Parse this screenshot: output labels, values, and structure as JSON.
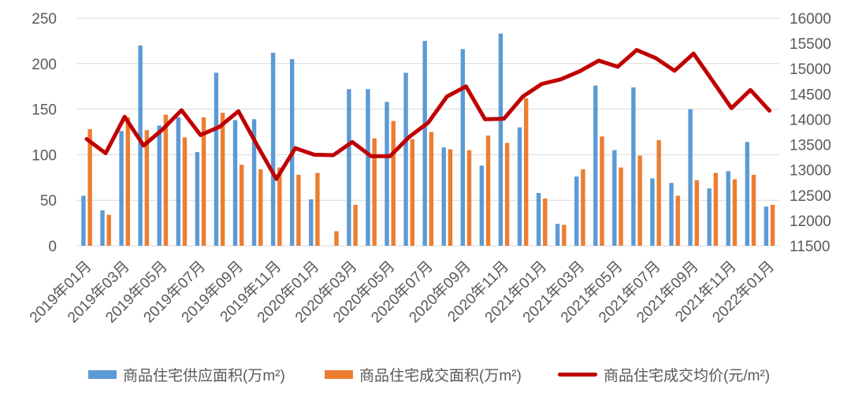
{
  "chart_data": {
    "type": "combo-bar-line",
    "categories": [
      "2019年01月",
      "2019年02月",
      "2019年03月",
      "2019年04月",
      "2019年05月",
      "2019年06月",
      "2019年07月",
      "2019年08月",
      "2019年09月",
      "2019年10月",
      "2019年11月",
      "2019年12月",
      "2020年01月",
      "2020年02月",
      "2020年03月",
      "2020年04月",
      "2020年05月",
      "2020年06月",
      "2020年07月",
      "2020年08月",
      "2020年09月",
      "2020年10月",
      "2020年11月",
      "2020年12月",
      "2021年01月",
      "2021年02月",
      "2021年03月",
      "2021年04月",
      "2021年05月",
      "2021年06月",
      "2021年07月",
      "2021年08月",
      "2021年09月",
      "2021年10月",
      "2021年11月",
      "2021年12月",
      "2022年01月"
    ],
    "x_label_every": 2,
    "series": [
      {
        "name": "商品住宅供应面积(万m²)",
        "type": "bar",
        "axis": "left",
        "color": "#5B9BD5",
        "values": [
          55,
          39,
          126,
          220,
          132,
          141,
          103,
          190,
          138,
          139,
          212,
          205,
          51,
          0,
          172,
          172,
          158,
          190,
          225,
          108,
          216,
          88,
          233,
          130,
          58,
          24,
          76,
          176,
          105,
          174,
          74,
          69,
          150,
          63,
          82,
          114,
          43
        ]
      },
      {
        "name": "商品住宅成交面积(万m²)",
        "type": "bar",
        "axis": "left",
        "color": "#ED7D31",
        "values": [
          128,
          34,
          141,
          127,
          144,
          119,
          141,
          146,
          89,
          84,
          86,
          78,
          80,
          16,
          45,
          118,
          137,
          117,
          125,
          106,
          105,
          121,
          113,
          162,
          52,
          23,
          84,
          120,
          86,
          99,
          116,
          55,
          72,
          80,
          73,
          78,
          45
        ]
      },
      {
        "name": "商品住宅成交均价(元/m²)",
        "type": "line",
        "axis": "right",
        "color": "#C00000",
        "values": [
          13610,
          13330,
          14050,
          13480,
          13800,
          14180,
          13690,
          13850,
          14160,
          13480,
          12820,
          13430,
          13300,
          13290,
          13550,
          13270,
          13270,
          13650,
          13930,
          14450,
          14650,
          14000,
          14010,
          14450,
          14700,
          14790,
          14950,
          15160,
          15040,
          15370,
          15210,
          14960,
          15300,
          14760,
          14220,
          14580,
          14170
        ]
      }
    ],
    "left_axis": {
      "min": 0,
      "max": 250,
      "step": 50,
      "ticks": [
        0,
        50,
        100,
        150,
        200,
        250
      ]
    },
    "right_axis": {
      "min": 11500,
      "max": 16000,
      "step": 500,
      "ticks": [
        11500,
        12000,
        12500,
        13000,
        13500,
        14000,
        14500,
        15000,
        15500,
        16000
      ]
    },
    "grid": true,
    "legend_position": "bottom"
  },
  "colors": {
    "background": "#FFFFFF",
    "gridline": "#D9D9D9",
    "axis_text": "#595959",
    "supply_bar": "#5B9BD5",
    "transaction_bar": "#ED7D31",
    "price_line": "#C00000"
  }
}
